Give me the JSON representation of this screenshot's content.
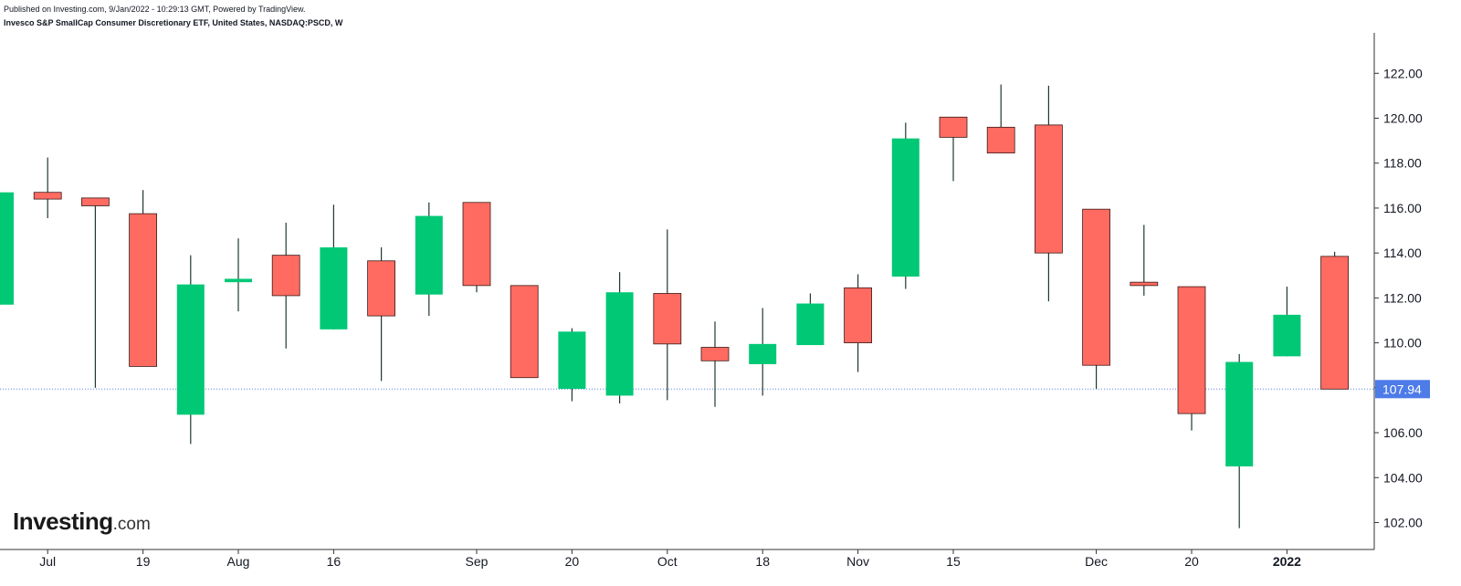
{
  "header": {
    "published": "Published on Investing.com, 9/Jan/2022 - 10:29:13 GMT, Powered by TradingView.",
    "title": "Invesco S&P SmallCap Consumer Discretionary ETF, United States, NASDAQ:PSCD, W"
  },
  "logo": {
    "main": "Investing",
    "suffix": ".com"
  },
  "colors": {
    "up": "#00c875",
    "down": "#ff6b61",
    "wick": "#1f3a2c",
    "last_price_line": "#5a80e6",
    "last_price_tag": "#4d7be8",
    "axis": "#333333"
  },
  "chart_data": {
    "type": "candlestick",
    "interval": "W",
    "y_axis": {
      "position": "right",
      "range": [
        100.8,
        123.8
      ],
      "ticks": [
        "102.00",
        "104.00",
        "106.00",
        "108.00",
        "110.00",
        "112.00",
        "114.00",
        "116.00",
        "118.00",
        "120.00",
        "122.00"
      ]
    },
    "x_axis": {
      "ticks": [
        {
          "label": "Jul",
          "index": 1
        },
        {
          "label": "19",
          "index": 3
        },
        {
          "label": "Aug",
          "index": 5
        },
        {
          "label": "16",
          "index": 7
        },
        {
          "label": "Sep",
          "index": 10
        },
        {
          "label": "20",
          "index": 12
        },
        {
          "label": "Oct",
          "index": 14
        },
        {
          "label": "18",
          "index": 16
        },
        {
          "label": "Nov",
          "index": 18
        },
        {
          "label": "15",
          "index": 20
        },
        {
          "label": "Dec",
          "index": 23
        },
        {
          "label": "20",
          "index": 25
        },
        {
          "label": "2022",
          "index": 27
        }
      ]
    },
    "last_price": "107.94",
    "candles": [
      {
        "o": 111.7,
        "h": 116.7,
        "l": 111.7,
        "c": 116.7
      },
      {
        "o": 116.7,
        "h": 118.25,
        "l": 115.55,
        "c": 116.4
      },
      {
        "o": 116.45,
        "h": 116.45,
        "l": 108.0,
        "c": 116.1
      },
      {
        "o": 115.75,
        "h": 116.8,
        "l": 108.95,
        "c": 108.95
      },
      {
        "o": 106.8,
        "h": 113.9,
        "l": 105.5,
        "c": 112.6
      },
      {
        "o": 112.7,
        "h": 114.65,
        "l": 111.4,
        "c": 112.85
      },
      {
        "o": 113.9,
        "h": 115.35,
        "l": 109.75,
        "c": 112.1
      },
      {
        "o": 110.6,
        "h": 116.15,
        "l": 110.6,
        "c": 114.25
      },
      {
        "o": 113.65,
        "h": 114.25,
        "l": 108.3,
        "c": 111.2
      },
      {
        "o": 112.15,
        "h": 116.25,
        "l": 111.2,
        "c": 115.65
      },
      {
        "o": 116.25,
        "h": 116.25,
        "l": 112.25,
        "c": 112.55
      },
      {
        "o": 112.55,
        "h": 112.55,
        "l": 108.45,
        "c": 108.45
      },
      {
        "o": 107.95,
        "h": 110.65,
        "l": 107.4,
        "c": 110.5
      },
      {
        "o": 107.65,
        "h": 113.15,
        "l": 107.3,
        "c": 112.25
      },
      {
        "o": 112.2,
        "h": 115.05,
        "l": 107.45,
        "c": 109.95
      },
      {
        "o": 109.8,
        "h": 110.95,
        "l": 107.15,
        "c": 109.2
      },
      {
        "o": 109.05,
        "h": 111.55,
        "l": 107.65,
        "c": 109.95
      },
      {
        "o": 109.9,
        "h": 112.2,
        "l": 109.9,
        "c": 111.75
      },
      {
        "o": 112.45,
        "h": 113.05,
        "l": 108.7,
        "c": 110.0
      },
      {
        "o": 112.95,
        "h": 119.8,
        "l": 112.4,
        "c": 119.1
      },
      {
        "o": 120.05,
        "h": 120.05,
        "l": 117.2,
        "c": 119.15
      },
      {
        "o": 119.6,
        "h": 121.5,
        "l": 118.45,
        "c": 118.45
      },
      {
        "o": 119.7,
        "h": 121.45,
        "l": 111.85,
        "c": 114.0
      },
      {
        "o": 115.95,
        "h": 115.95,
        "l": 107.95,
        "c": 109.0
      },
      {
        "o": 112.7,
        "h": 115.25,
        "l": 112.1,
        "c": 112.55
      },
      {
        "o": 112.5,
        "h": 112.5,
        "l": 106.1,
        "c": 106.85
      },
      {
        "o": 104.5,
        "h": 109.5,
        "l": 101.75,
        "c": 109.15
      },
      {
        "o": 109.4,
        "h": 112.5,
        "l": 109.4,
        "c": 111.25
      },
      {
        "o": 113.85,
        "h": 114.05,
        "l": 107.94,
        "c": 107.94
      }
    ]
  }
}
